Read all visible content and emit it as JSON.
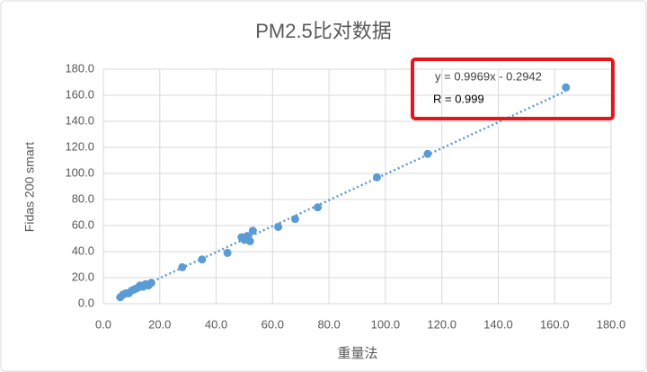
{
  "chart_data": {
    "type": "scatter",
    "title": "PM2.5比对数据",
    "x_label": "重量法",
    "y_label": "Fidas 200 smart",
    "color": "#5b9bd5",
    "grid": true,
    "x": [
      6,
      7,
      8,
      9,
      10,
      11,
      12,
      13,
      14,
      15,
      16,
      17,
      28,
      35,
      44,
      49,
      50,
      51,
      52,
      53,
      62,
      68,
      76,
      97,
      115,
      164
    ],
    "values": [
      5,
      7,
      8,
      8,
      10,
      11,
      12,
      14,
      13,
      15,
      14,
      16,
      28,
      34,
      39,
      51,
      49,
      52,
      48,
      56,
      59,
      65,
      74,
      97,
      115,
      166
    ],
    "trendline": {
      "slope": 0.9969,
      "intercept": -0.2942,
      "equation": "y = 0.9969x - 0.2942",
      "r_label": "R = 0.999"
    },
    "xlim": [
      0,
      180
    ],
    "ylim": [
      0,
      180
    ],
    "xticks": [
      {
        "value": 0,
        "label": "0.0"
      },
      {
        "value": 20,
        "label": "20.0"
      },
      {
        "value": 40,
        "label": "40.0"
      },
      {
        "value": 60,
        "label": "60.0"
      },
      {
        "value": 80,
        "label": "80.0"
      },
      {
        "value": 100,
        "label": "100.0"
      },
      {
        "value": 120,
        "label": "120.0"
      },
      {
        "value": 140,
        "label": "140.0"
      },
      {
        "value": 160,
        "label": "160.0"
      },
      {
        "value": 180,
        "label": "180.0"
      }
    ],
    "yticks": [
      {
        "value": 0,
        "label": "0.0"
      },
      {
        "value": 20,
        "label": "20.0"
      },
      {
        "value": 40,
        "label": "40.0"
      },
      {
        "value": 60,
        "label": "60.0"
      },
      {
        "value": 80,
        "label": "80.0"
      },
      {
        "value": 100,
        "label": "100.0"
      },
      {
        "value": 120,
        "label": "120.0"
      },
      {
        "value": 140,
        "label": "140.0"
      },
      {
        "value": 160,
        "label": "160.0"
      },
      {
        "value": 180,
        "label": "180.0"
      }
    ]
  }
}
